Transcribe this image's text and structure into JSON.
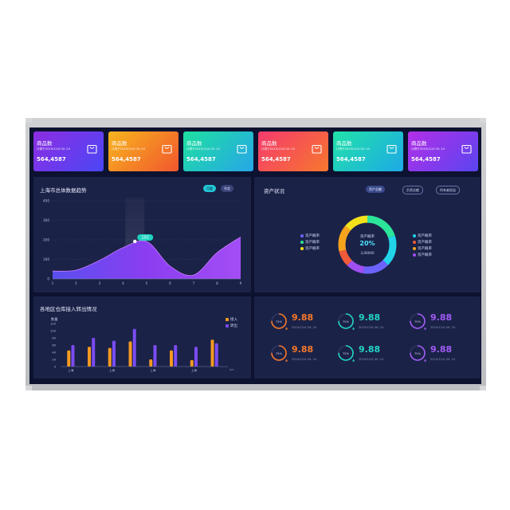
{
  "cards": [
    {
      "title": "商品数",
      "sub": "计算于2019/12/4 00: 24",
      "value": "564,4587",
      "c1": "#8e2de2",
      "c2": "#4a47f5"
    },
    {
      "title": "商品数",
      "sub": "计算于2019/12/4 00: 24",
      "value": "564,4587",
      "c1": "#f7b51d",
      "c2": "#f2562e"
    },
    {
      "title": "商品数",
      "sub": "计算于2019/12/4 00: 24",
      "value": "564,4587",
      "c1": "#1ee0a0",
      "c2": "#27a6e8"
    },
    {
      "title": "商品数",
      "sub": "计算于2019/12/4 00: 24",
      "value": "564,4587",
      "c1": "#f53a6e",
      "c2": "#f7772d"
    },
    {
      "title": "商品数",
      "sub": "计算于2019/12/4 00: 24",
      "value": "564,4587",
      "c1": "#21e3a8",
      "c2": "#1ea9e6"
    },
    {
      "title": "商品数",
      "sub": "计算于2019/12/4 00: 24",
      "value": "564,4587",
      "c1": "#b22fe8",
      "c2": "#5a45f0"
    }
  ],
  "trend": {
    "title": "上海市总体数据趋势",
    "chips": [
      "月度",
      "季度"
    ],
    "highlight_label": "192"
  },
  "assets": {
    "title": "资产状况",
    "tabs": [
      "资产总额",
      "负债总额",
      "所有者权益"
    ],
    "center_label": "资产概率",
    "center_pct": "20%",
    "center_value": "3,00000",
    "legend_left": [
      {
        "label": "资产概率",
        "color": "#6c63ff"
      },
      {
        "label": "资产概率",
        "color": "#2be59a"
      },
      {
        "label": "资产概率",
        "color": "#f2e21c"
      }
    ],
    "legend_right": [
      {
        "label": "资产概率",
        "color": "#21d4e8"
      },
      {
        "label": "资产概率",
        "color": "#f25a3a"
      },
      {
        "label": "资产概率",
        "color": "#f7a31c"
      },
      {
        "label": "资产概率",
        "color": "#a04ff0"
      }
    ]
  },
  "warehouse": {
    "title": "各地区仓库接入转出情况",
    "ylabel": "数量",
    "legend": [
      {
        "label": "接入",
        "color": "#f59a23"
      },
      {
        "label": "转出",
        "color": "#7b4cf3"
      }
    ],
    "unit": "km",
    "xlabels": [
      "上海",
      "上海",
      "上海",
      "上海"
    ]
  },
  "stats": [
    {
      "pct": "75%",
      "value": "9.88",
      "date": "2019/12/4 00: 24",
      "color": "#f5782a"
    },
    {
      "pct": "75%",
      "value": "9.88",
      "date": "2019/12/4 00: 24",
      "color": "#22d3c5"
    },
    {
      "pct": "75%",
      "value": "9.88",
      "date": "2019/12/4 00: 24",
      "color": "#a05cf5"
    },
    {
      "pct": "75%",
      "value": "9.88",
      "date": "2019/12/4 00: 24",
      "color": "#f5782a"
    },
    {
      "pct": "75%",
      "value": "9.88",
      "date": "2019/12/4 00: 24",
      "color": "#22d3c5"
    },
    {
      "pct": "75%",
      "value": "9.88",
      "date": "2019/12/4 00: 24",
      "color": "#a05cf5"
    }
  ],
  "chart_data": [
    {
      "type": "area",
      "title": "上海市总体数据趋势",
      "x": [
        1,
        2,
        3,
        4,
        5,
        6,
        7,
        8,
        9
      ],
      "values": [
        40,
        45,
        95,
        160,
        192,
        65,
        20,
        135,
        215
      ],
      "yticks": [
        0,
        100,
        200,
        300,
        400
      ],
      "ylim": [
        0,
        400
      ],
      "highlight": {
        "x": 4.5,
        "y": 192
      }
    },
    {
      "type": "bar",
      "title": "各地区仓库接入转出情况",
      "yticks": [
        0,
        20,
        40,
        60,
        80,
        100,
        120
      ],
      "ylim": [
        0,
        120
      ],
      "categories": [
        "上海",
        "",
        "上海",
        "",
        "上海",
        "",
        "上海",
        ""
      ],
      "series": [
        {
          "name": "接入",
          "values": [
            45,
            55,
            52,
            70,
            20,
            45,
            18,
            75
          ]
        },
        {
          "name": "转出",
          "values": [
            60,
            80,
            72,
            105,
            60,
            60,
            55,
            65
          ]
        }
      ]
    }
  ]
}
